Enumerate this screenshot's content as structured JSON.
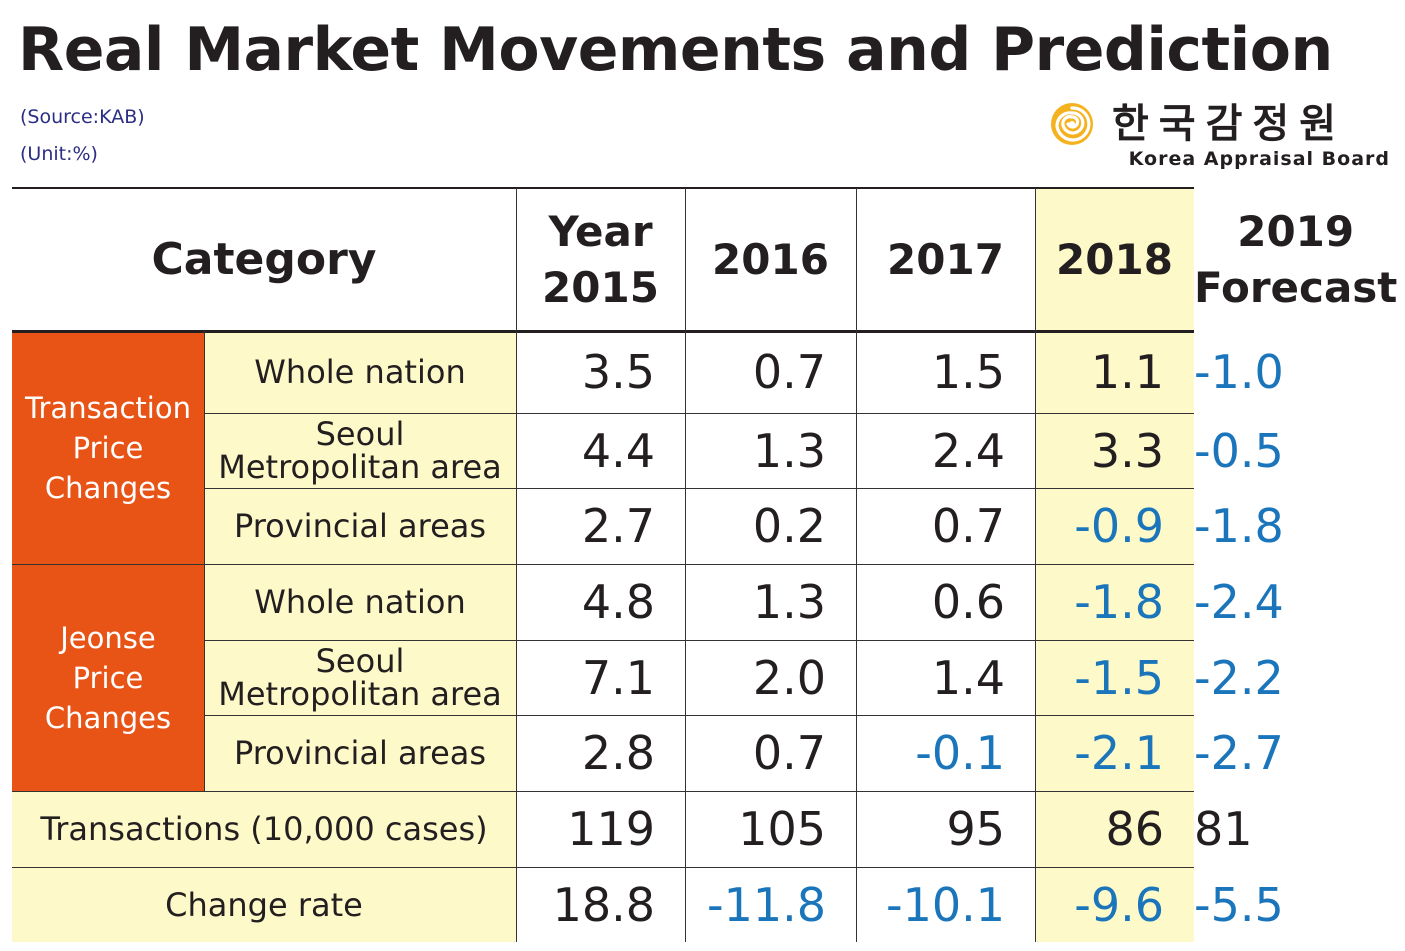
{
  "title": "Real Market Movements and Prediction",
  "source": "(Source:KAB)",
  "unit": "(Unit:%)",
  "logo": {
    "korean_name": "한국감정원",
    "english_name": "Korea Appraisal Board",
    "mark_icon": "spiral-emblem-icon",
    "mark_color": "#f5b21f"
  },
  "colors": {
    "group_header": "#e85316",
    "highlight": "#fdf9c9",
    "negative": "#1b75bb",
    "text": "#231f20"
  },
  "chart_data": {
    "type": "table",
    "title": "Real Market Movements and Prediction",
    "header": {
      "category": "Category",
      "columns": [
        {
          "line1": "Year",
          "line2": "2015"
        },
        {
          "line1": "",
          "line2": "2016"
        },
        {
          "line1": "",
          "line2": "2017"
        },
        {
          "line1": "",
          "line2": "2018"
        },
        {
          "line1": "2019",
          "line2": "Forecast"
        }
      ]
    },
    "groups": [
      {
        "label": [
          "Transaction",
          "Price",
          "Changes"
        ],
        "rows": [
          {
            "label": [
              "Whole nation"
            ],
            "values": [
              "3.5",
              "0.7",
              "1.5",
              "1.1",
              "-1.0"
            ]
          },
          {
            "label": [
              "Seoul",
              "Metropolitan area"
            ],
            "values": [
              "4.4",
              "1.3",
              "2.4",
              "3.3",
              "-0.5"
            ]
          },
          {
            "label": [
              "Provincial areas"
            ],
            "values": [
              "2.7",
              "0.2",
              "0.7",
              "-0.9",
              "-1.8"
            ]
          }
        ]
      },
      {
        "label": [
          "Jeonse",
          "Price",
          "Changes"
        ],
        "rows": [
          {
            "label": [
              "Whole nation"
            ],
            "values": [
              "4.8",
              "1.3",
              "0.6",
              "-1.8",
              "-2.4"
            ]
          },
          {
            "label": [
              "Seoul",
              "Metropolitan area"
            ],
            "values": [
              "7.1",
              "2.0",
              "1.4",
              "-1.5",
              "-2.2"
            ]
          },
          {
            "label": [
              "Provincial areas"
            ],
            "values": [
              "2.8",
              "0.7",
              "-0.1",
              "-2.1",
              "-2.7"
            ]
          }
        ]
      }
    ],
    "summary_rows": [
      {
        "label": "Transactions (10,000 cases)",
        "values": [
          "119",
          "105",
          "95",
          "86",
          "81"
        ]
      },
      {
        "label": "Change rate",
        "values": [
          "18.8",
          "-11.8",
          "-10.1",
          "-9.6",
          "-5.5"
        ]
      }
    ]
  }
}
